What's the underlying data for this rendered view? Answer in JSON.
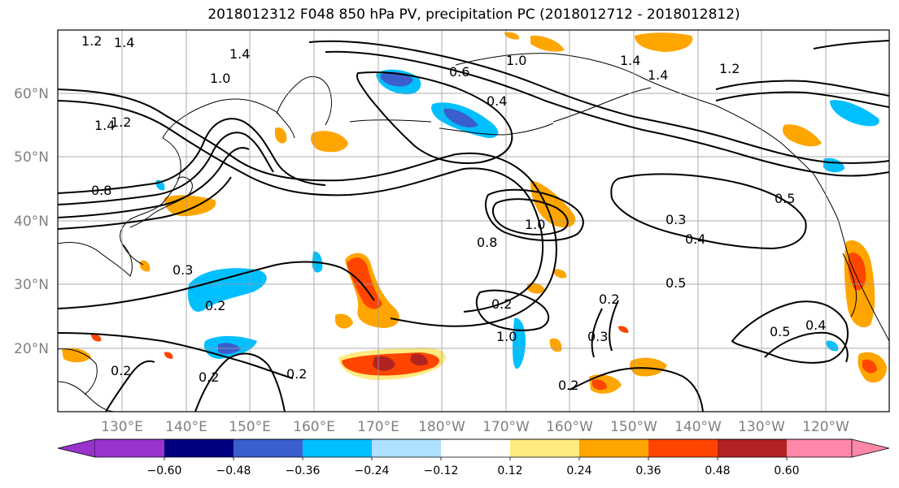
{
  "title": "2018012312 F048 850 hPa PV, precipitation PC (2018012712 - 2018012812)",
  "lat_labels": [
    "60°N",
    "50°N",
    "40°N",
    "30°N",
    "20°N"
  ],
  "lon_labels": [
    "130°E",
    "140°E",
    "150°E",
    "160°E",
    "170°E",
    "180°W",
    "170°W",
    "160°W",
    "150°W",
    "140°W",
    "130°W",
    "120°W"
  ],
  "contour_labels": [
    "1.2",
    "1.4",
    "1.4",
    "1.0",
    "1.2",
    "1.4",
    "0.8",
    "0.6",
    "1.0",
    "0.4",
    "1.4",
    "1.4",
    "1.2",
    "1.0",
    "0.3",
    "0.2",
    "0.2",
    "0.2",
    "0.2",
    "1.0",
    "0.8",
    "0.3",
    "0.4",
    "0.5",
    "0.2",
    "0.3",
    "0.2",
    "0.5",
    "0.4",
    "0.5",
    "0.2"
  ],
  "colorbar": {
    "tick_labels": [
      "−0.60",
      "−0.48",
      "−0.36",
      "−0.24",
      "−0.12",
      "0.12",
      "0.24",
      "0.36",
      "0.48",
      "0.60"
    ],
    "colors": [
      "#9933cc",
      "#000080",
      "#3a5fcd",
      "#00bfff",
      "#b0e0ff",
      "#ffffff",
      "#ffeb80",
      "#ffa500",
      "#ff4500",
      "#b22222",
      "#ff88aa"
    ]
  },
  "colors": {
    "orange": "#ffa500",
    "red_orange": "#ff4500",
    "dark_red": "#b22222",
    "light_yellow": "#ffeb80",
    "sky_blue": "#00bfff",
    "medium_blue": "#3a5fcd",
    "light_blue": "#b0e0ff"
  }
}
